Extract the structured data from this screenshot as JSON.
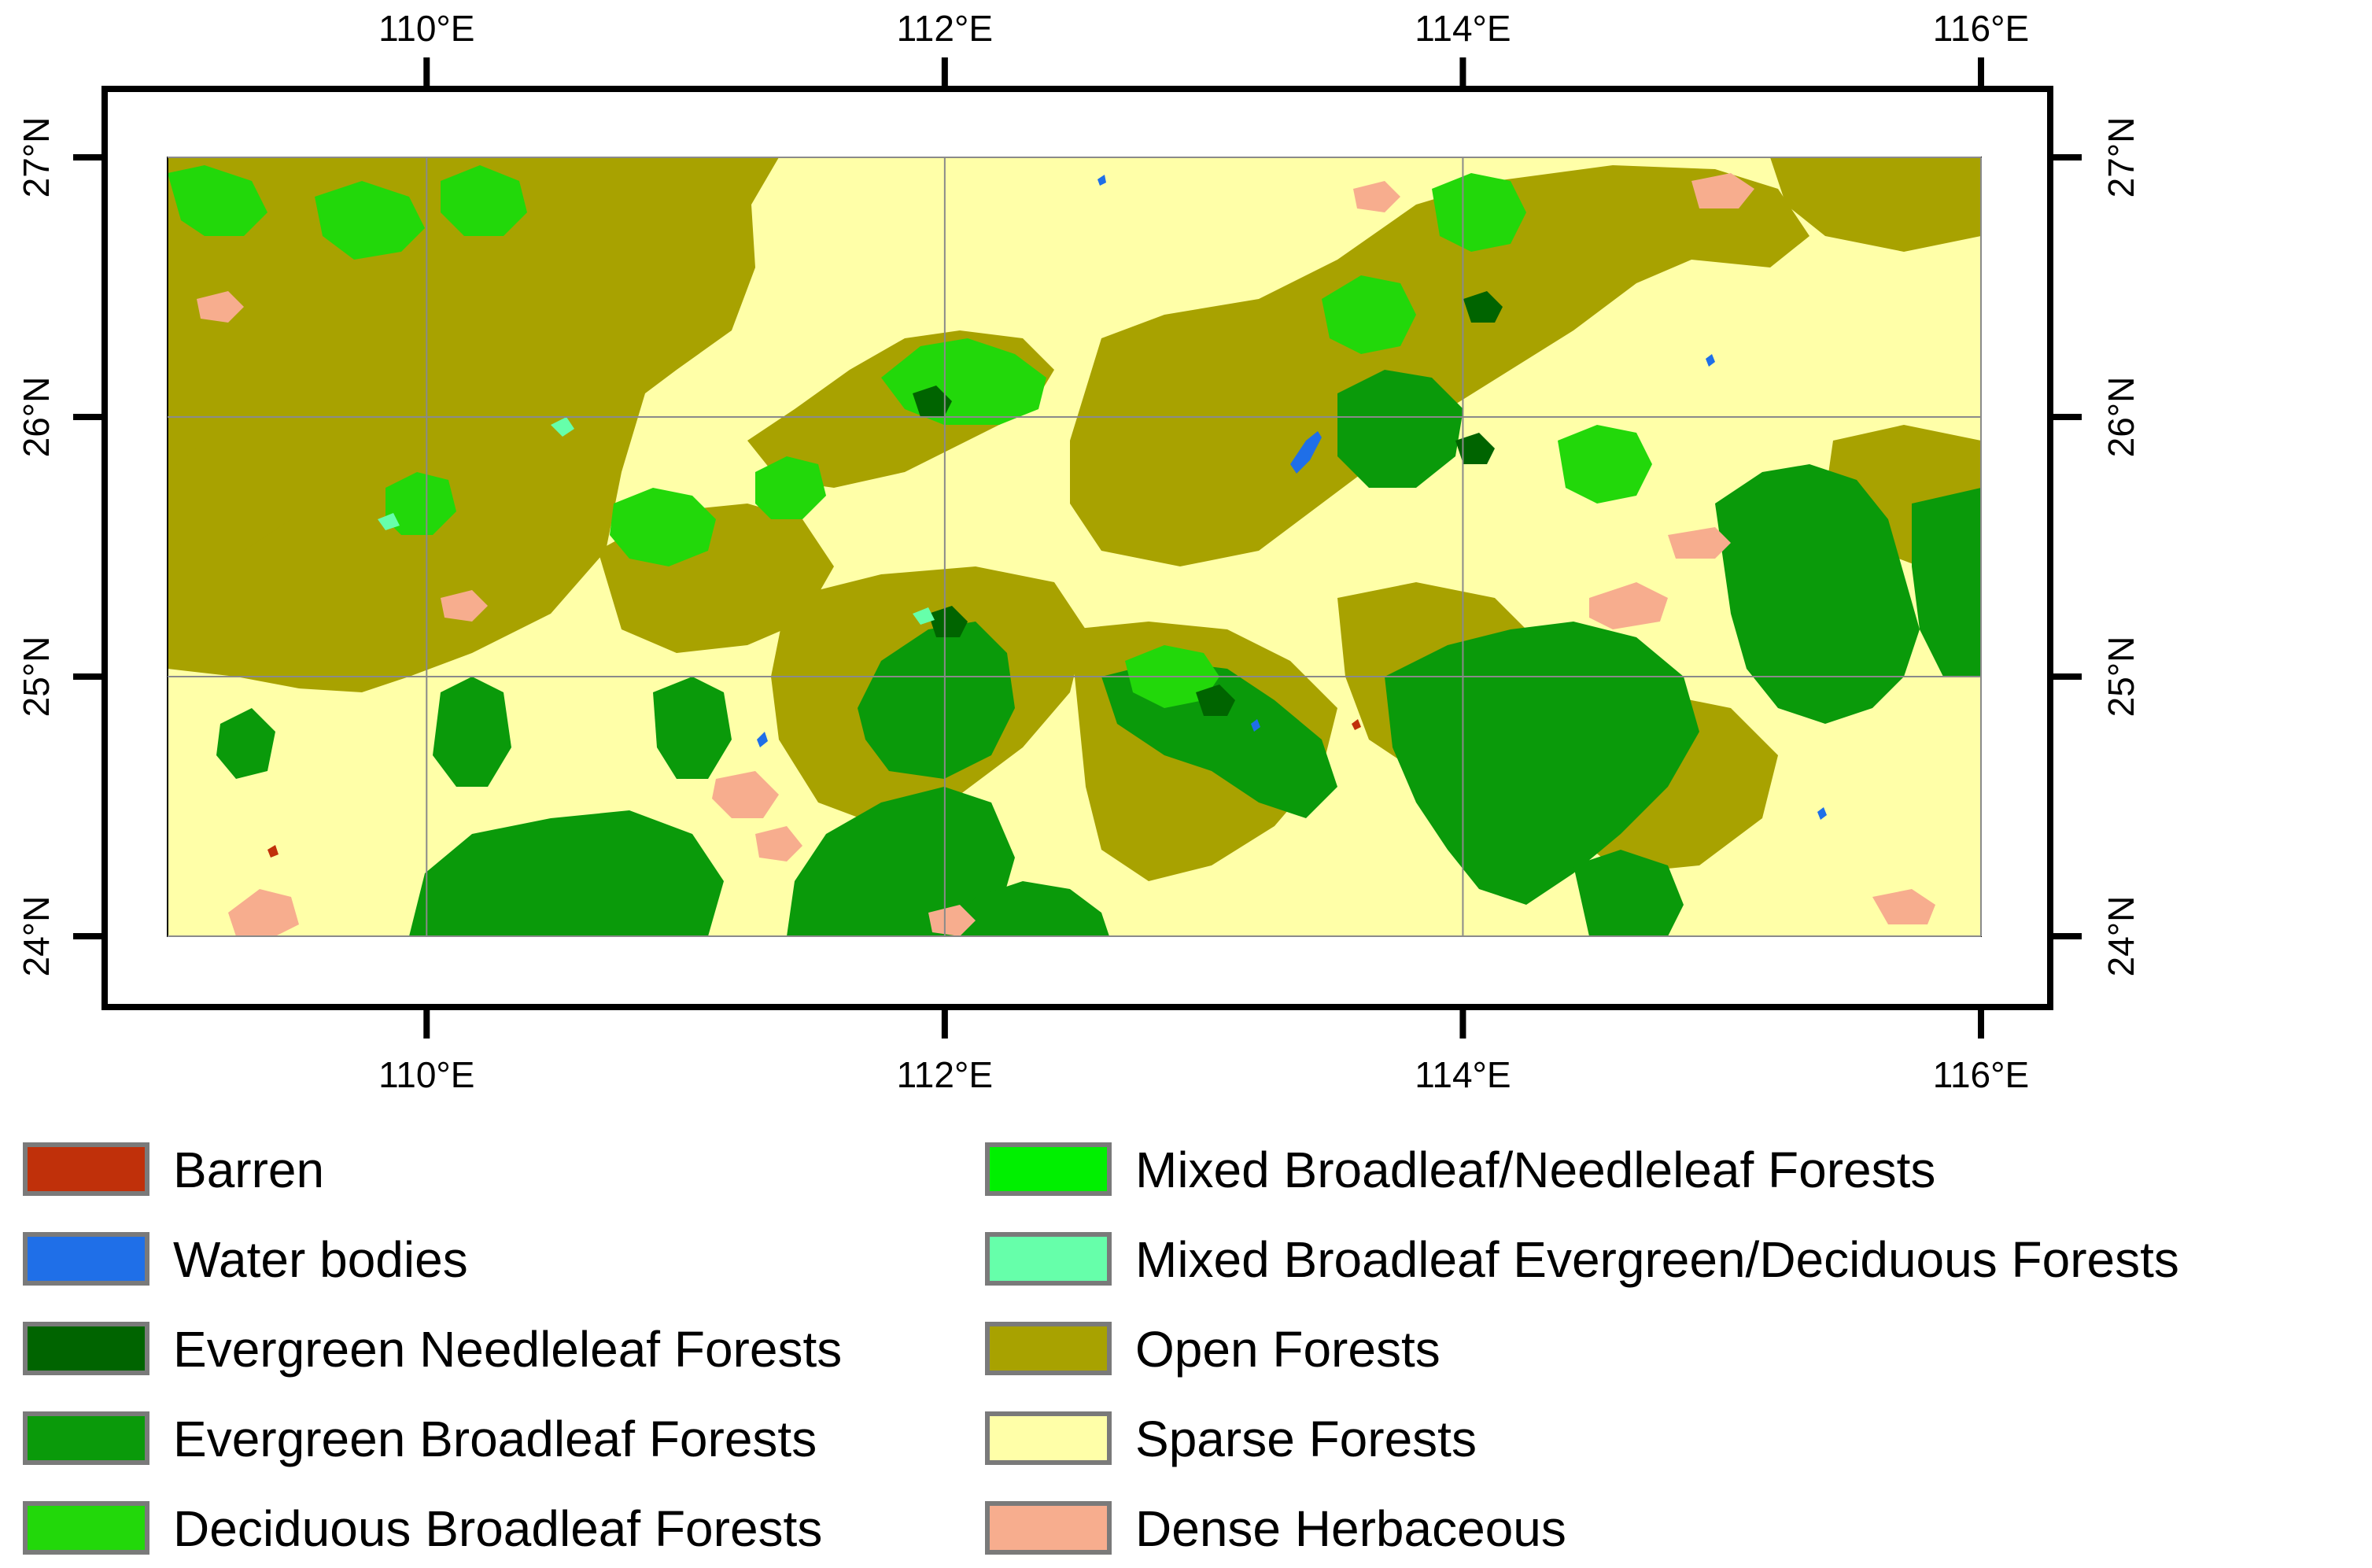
{
  "map": {
    "extent": {
      "lon_min": 109,
      "lon_max": 116,
      "lat_min": 24,
      "lat_max": 27
    },
    "lon_ticks": [
      {
        "value": 110,
        "label": "110°E"
      },
      {
        "value": 112,
        "label": "112°E"
      },
      {
        "value": 114,
        "label": "114°E"
      },
      {
        "value": 116,
        "label": "116°E"
      }
    ],
    "lat_ticks": [
      {
        "value": 24,
        "label": "24°N"
      },
      {
        "value": 25,
        "label": "25°N"
      },
      {
        "value": 26,
        "label": "26°N"
      },
      {
        "value": 27,
        "label": "27°N"
      }
    ],
    "base_class": "sparse-forests"
  },
  "legend": [
    {
      "id": "barren",
      "label": "Barren",
      "color": "#c0300a"
    },
    {
      "id": "water-bodies",
      "label": "Water bodies",
      "color": "#1f6fe8"
    },
    {
      "id": "evergreen-needleleaf",
      "label": "Evergreen Needleleaf Forests",
      "color": "#006400"
    },
    {
      "id": "evergreen-broadleaf",
      "label": "Evergreen Broadleaf Forests",
      "color": "#0a9a0a"
    },
    {
      "id": "deciduous-broadleaf",
      "label": "Deciduous Broadleaf Forests",
      "color": "#22d80a"
    },
    {
      "id": "mixed-broadleaf-needleleaf",
      "label": "Mixed Broadleaf/Needleleaf Forests",
      "color": "#00f000"
    },
    {
      "id": "mixed-broadleaf-evergreen-deciduous",
      "label": "Mixed Broadleaf Evergreen/Deciduous Forests",
      "color": "#66ffaa"
    },
    {
      "id": "open-forests",
      "label": "Open Forests",
      "color": "#a8a200"
    },
    {
      "id": "sparse-forests",
      "label": "Sparse Forests",
      "color": "#ffffa8"
    },
    {
      "id": "dense-herbaceous",
      "label": "Dense Herbaceous",
      "color": "#f7ad8e"
    }
  ]
}
